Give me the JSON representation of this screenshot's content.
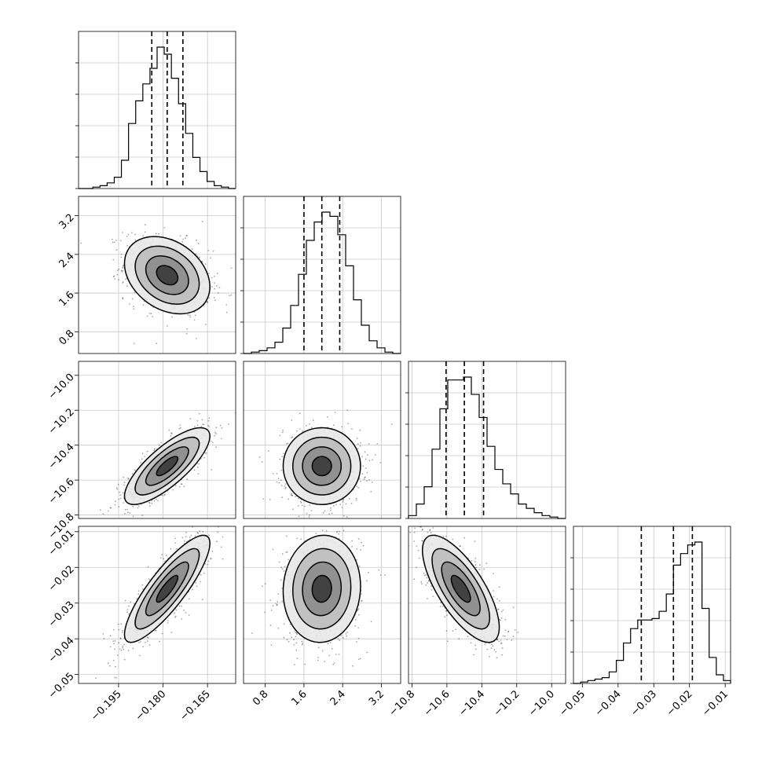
{
  "chart_data": {
    "type": "scatter",
    "subtype": "corner-plot",
    "grid": true,
    "parameters": [
      {
        "range": [
          -0.2085,
          -0.1555
        ],
        "ticks": [
          "-0.195",
          "-0.180",
          "-0.165"
        ],
        "tick_values": [
          -0.195,
          -0.18,
          -0.165
        ],
        "quantiles": [
          -0.1838,
          -0.1786,
          -0.1733
        ]
      },
      {
        "range": [
          0.35,
          3.6
        ],
        "ticks": [
          "0.8",
          "1.6",
          "2.4",
          "3.2"
        ],
        "tick_values": [
          0.8,
          1.6,
          2.4,
          3.2
        ],
        "quantiles": [
          1.6,
          1.97,
          2.34
        ]
      },
      {
        "range": [
          -10.82,
          -9.92
        ],
        "ticks": [
          "-10.8",
          "-10.6",
          "-10.4",
          "-10.2",
          "-10.0"
        ],
        "tick_values": [
          -10.8,
          -10.6,
          -10.4,
          -10.2,
          -10.0
        ],
        "quantiles": [
          -10.605,
          -10.5,
          -10.39
        ]
      },
      {
        "range": [
          -0.0525,
          -0.0085
        ],
        "ticks": [
          "-0.05",
          "-0.04",
          "-0.03",
          "-0.02",
          "-0.01"
        ],
        "tick_values": [
          -0.05,
          -0.04,
          -0.03,
          -0.02,
          -0.01
        ],
        "quantiles": [
          -0.0335,
          -0.0245,
          -0.0192
        ]
      }
    ],
    "histograms": [
      {
        "param": 0,
        "values": [
          0,
          0,
          1,
          2,
          4,
          8,
          20,
          46,
          62,
          74,
          85,
          100,
          95,
          78,
          60,
          39,
          22,
          12,
          5,
          2,
          1,
          0
        ]
      },
      {
        "param": 1,
        "values": [
          0,
          1,
          2,
          4,
          8,
          18,
          34,
          56,
          80,
          93,
          100,
          97,
          84,
          62,
          38,
          20,
          9,
          4,
          1,
          0
        ]
      },
      {
        "param": 2,
        "values": [
          2,
          10,
          22,
          48,
          76,
          96,
          96,
          98,
          86,
          70,
          50,
          34,
          24,
          17,
          10,
          7,
          4,
          2,
          1,
          0
        ]
      },
      {
        "param": 3,
        "values": [
          0,
          1,
          2,
          3,
          4,
          8,
          16,
          28,
          38,
          44,
          44,
          45,
          50,
          62,
          82,
          90,
          96,
          98,
          52,
          18,
          6,
          2
        ]
      }
    ],
    "pairs": [
      {
        "x": 1,
        "y": 0,
        "mean": [
          -0.1786,
          1.97
        ],
        "sd": [
          0.0072,
          0.4
        ],
        "rho": -0.3
      },
      {
        "x": 2,
        "y": 0,
        "mean": [
          -0.1786,
          -10.52
        ],
        "sd": [
          0.0072,
          0.11
        ],
        "rho": 0.78
      },
      {
        "x": 2,
        "y": 1,
        "mean": [
          1.97,
          -10.52
        ],
        "sd": [
          0.4,
          0.11
        ],
        "rho": 0.0
      },
      {
        "x": 3,
        "y": 0,
        "mean": [
          -0.1786,
          -0.026
        ],
        "sd": [
          0.0072,
          0.0075
        ],
        "rho": 0.85
      },
      {
        "x": 3,
        "y": 1,
        "mean": [
          1.97,
          -0.026
        ],
        "sd": [
          0.4,
          0.0075
        ],
        "rho": 0.05
      },
      {
        "x": 3,
        "y": 2,
        "mean": [
          -10.52,
          -0.026
        ],
        "sd": [
          0.11,
          0.0075
        ],
        "rho": -0.72
      }
    ]
  }
}
